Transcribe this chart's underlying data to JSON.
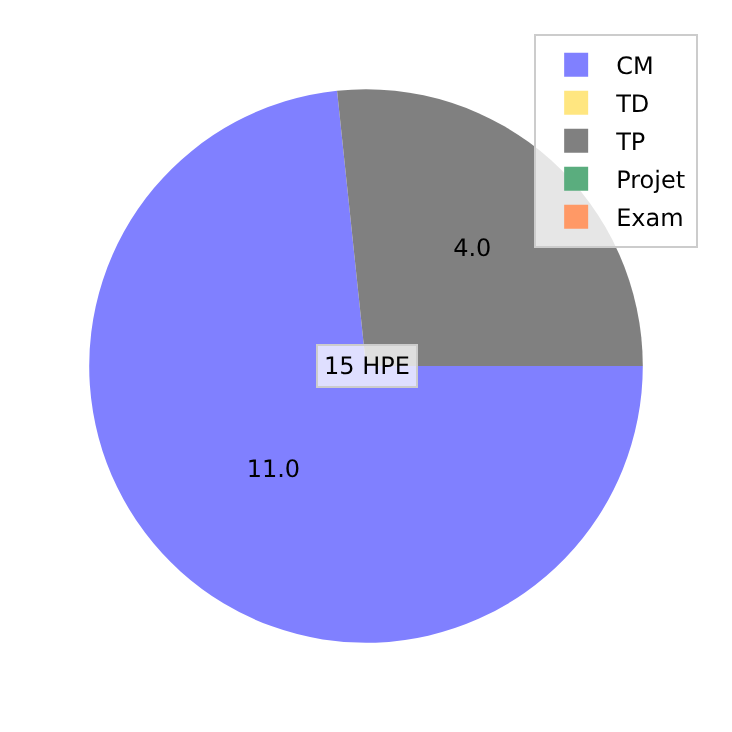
{
  "chart_data": {
    "type": "pie",
    "categories": [
      "CM",
      "TD",
      "TP",
      "Projet",
      "Exam"
    ],
    "values": [
      11,
      0,
      4,
      0,
      0
    ],
    "value_labels": [
      "11.0",
      null,
      "4.0",
      null,
      null
    ],
    "colors": [
      "#8080ff",
      "#ffe680",
      "#808080",
      "#5aad7e",
      "#ff9966"
    ],
    "annotations": [
      "15 HPE"
    ],
    "legend": "top right"
  }
}
